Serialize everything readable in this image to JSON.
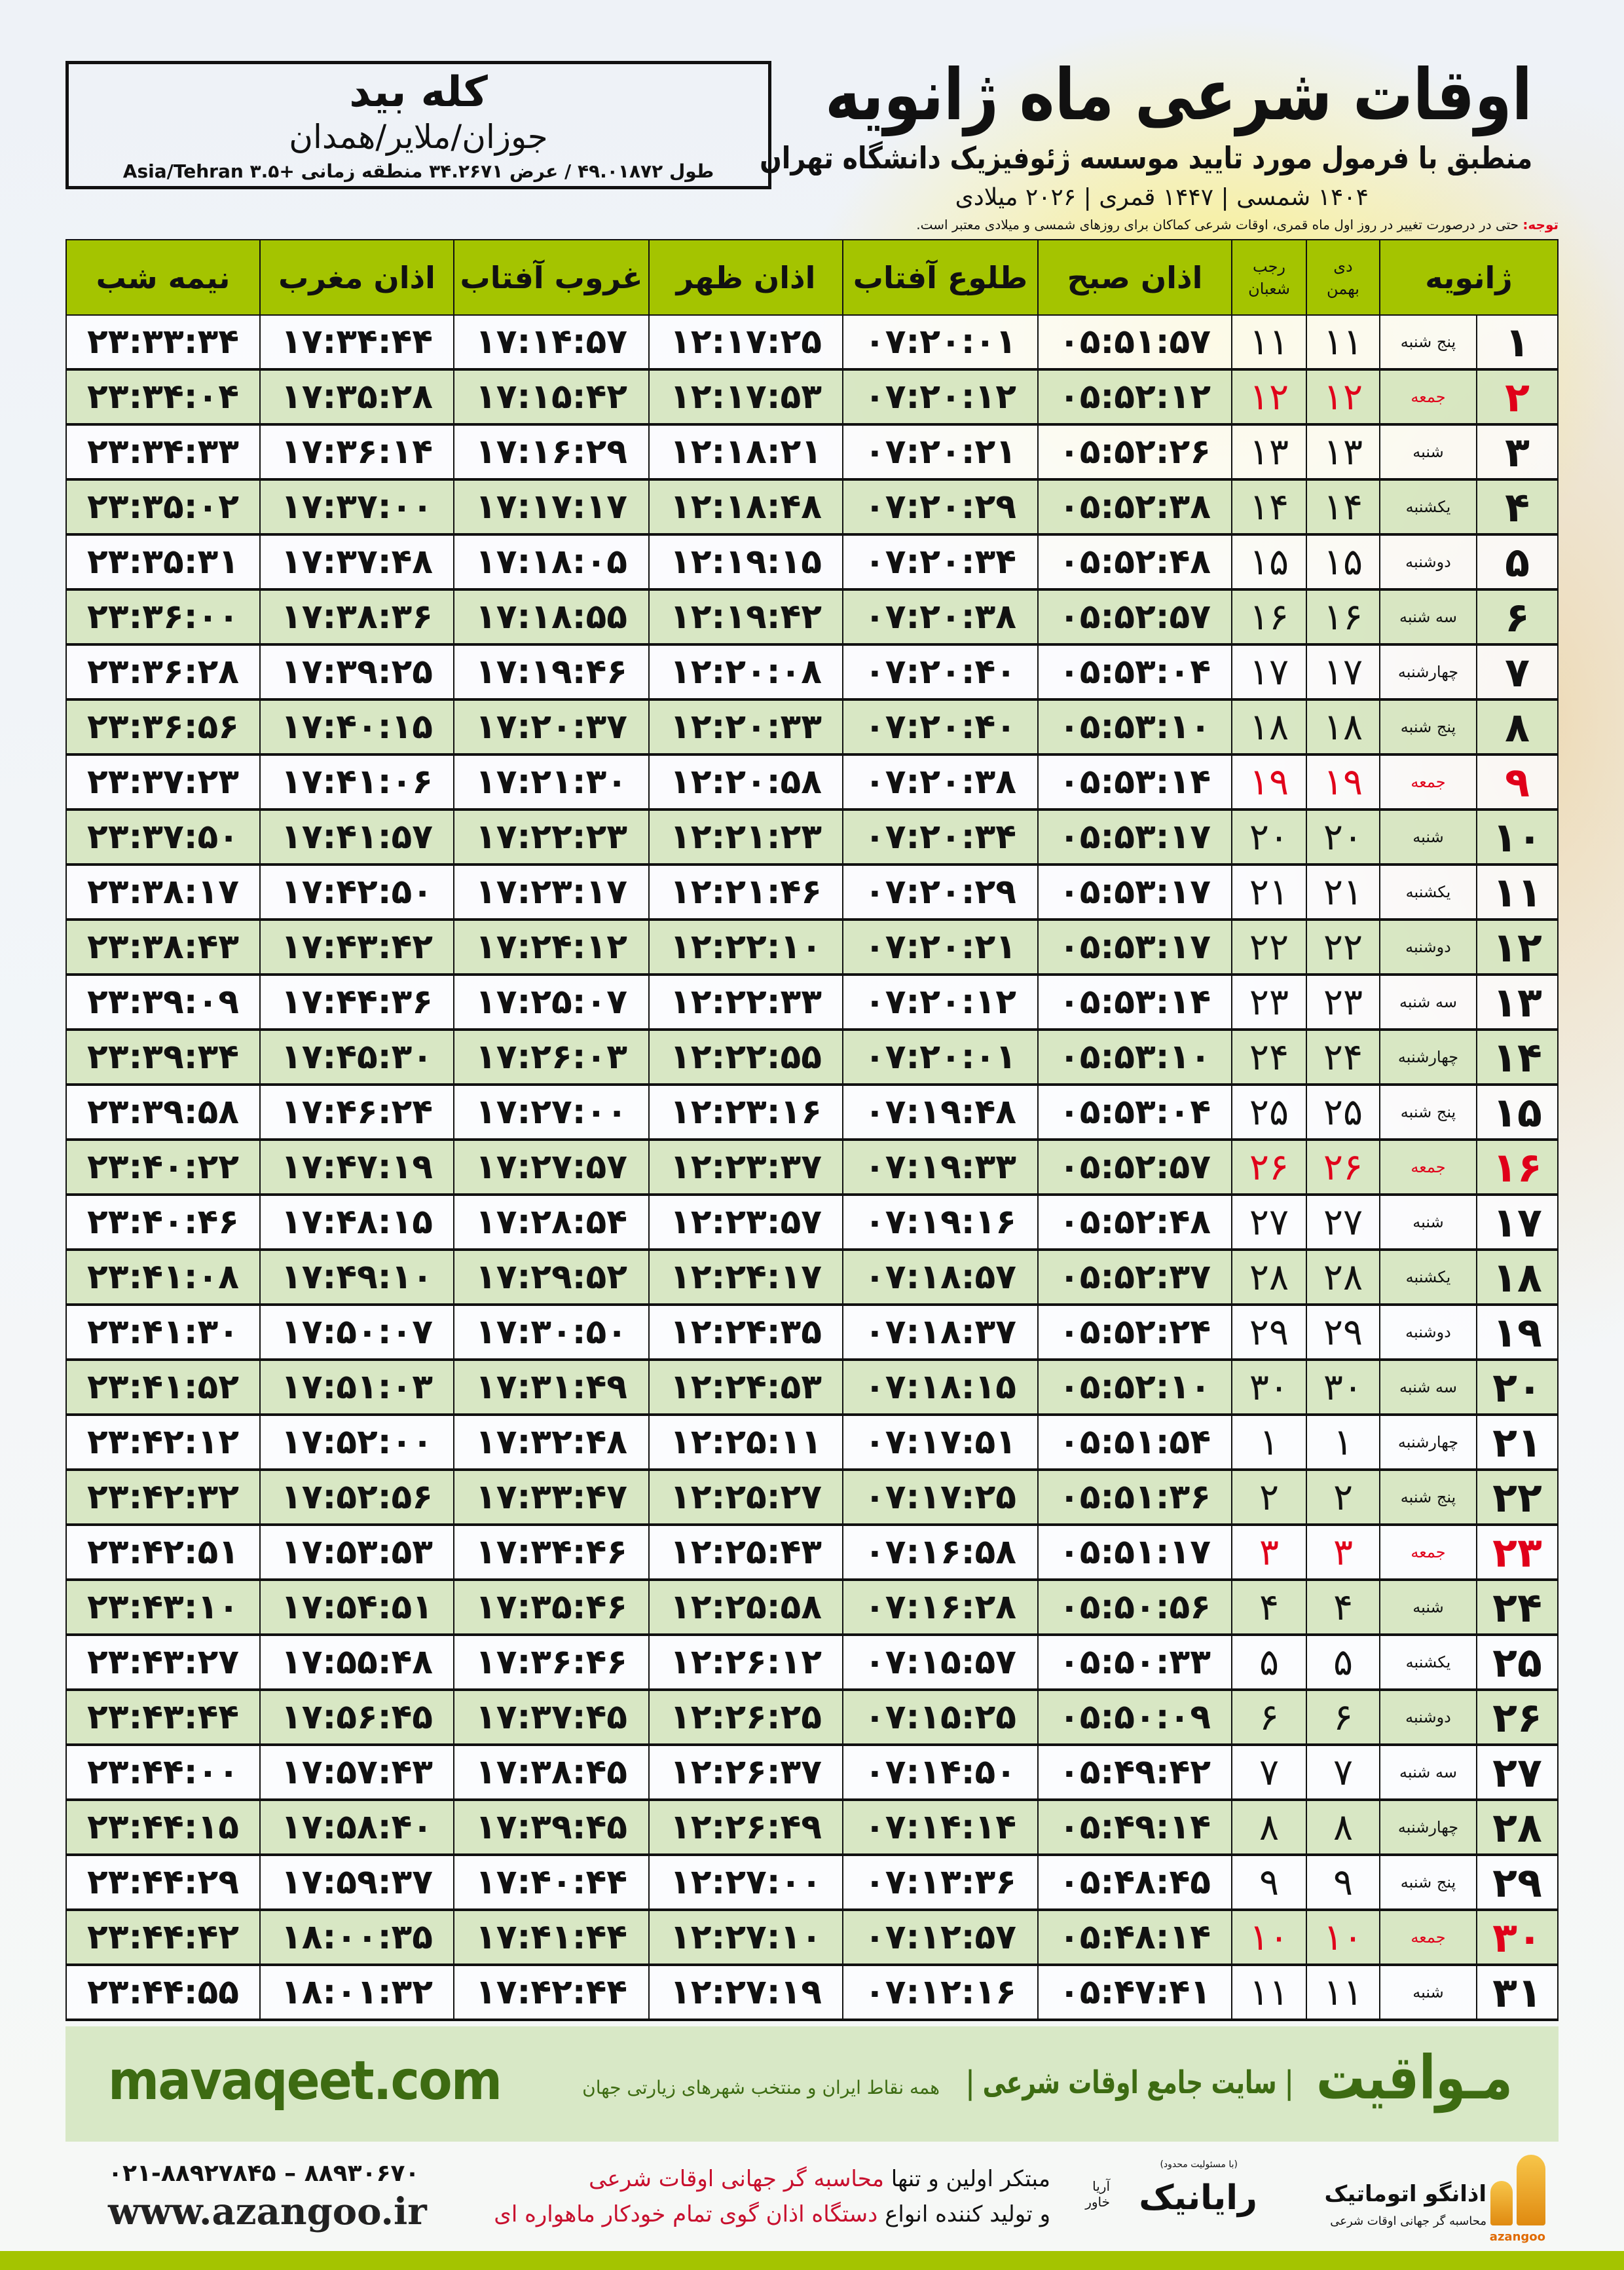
{
  "location": {
    "name": "کله بید",
    "region": "جوزان/ملایر/همدان",
    "coords": "طول ۴۹.۰۱۸۷۲ / عرض ۳۴.۲۶۷۱ منطقه زمانی +۳.۵ Asia/Tehran"
  },
  "header": {
    "title": "اوقات شرعی ماه ژانویه",
    "subtitle": "منطبق با فرمول مورد تایید موسسه ژئوفیزیک دانشگاه تهران",
    "dateline": "۱۴۰۴ شمسی | ۱۴۴۷ قمری | ۲۰۲۶ میلادی",
    "note_label": "توجه:",
    "note_text": " حتی در درصورت تغییر در روز اول ماه قمری، اوقات شرعی کماکان برای روزهای شمسی و میلادی معتبر است."
  },
  "colors": {
    "header_green": "#a4c400",
    "row_green": "#d6e6c2",
    "holiday_red": "#e0001a",
    "brand_green": "#3d6b12"
  },
  "table": {
    "columns": {
      "month": "ژانویه",
      "shamsi_top": "دی",
      "shamsi_bottom": "بهمن",
      "lunar_top": "رجب",
      "lunar_bottom": "شعبان",
      "fajr": "اذان صبح",
      "sunrise": "طلوع آفتاب",
      "dhuhr": "اذان ظهر",
      "sunset": "غروب آفتاب",
      "maghrib": "اذان مغرب",
      "midnight": "نیمه شب"
    },
    "rows": [
      {
        "day": "۱",
        "weekday": "پنج شنبه",
        "shamsi": "۱۱",
        "lunar": "۱۱",
        "fajr": "۰۵:۵۱:۵۷",
        "sunrise": "۰۷:۲۰:۰۱",
        "dhuhr": "۱۲:۱۷:۲۵",
        "sunset": "۱۷:۱۴:۵۷",
        "maghrib": "۱۷:۳۴:۴۴",
        "midnight": "۲۳:۳۳:۳۴",
        "holiday": false
      },
      {
        "day": "۲",
        "weekday": "جمعه",
        "shamsi": "۱۲",
        "lunar": "۱۲",
        "fajr": "۰۵:۵۲:۱۲",
        "sunrise": "۰۷:۲۰:۱۲",
        "dhuhr": "۱۲:۱۷:۵۳",
        "sunset": "۱۷:۱۵:۴۲",
        "maghrib": "۱۷:۳۵:۲۸",
        "midnight": "۲۳:۳۴:۰۴",
        "holiday": true
      },
      {
        "day": "۳",
        "weekday": "شنبه",
        "shamsi": "۱۳",
        "lunar": "۱۳",
        "fajr": "۰۵:۵۲:۲۶",
        "sunrise": "۰۷:۲۰:۲۱",
        "dhuhr": "۱۲:۱۸:۲۱",
        "sunset": "۱۷:۱۶:۲۹",
        "maghrib": "۱۷:۳۶:۱۴",
        "midnight": "۲۳:۳۴:۳۳",
        "holiday": false
      },
      {
        "day": "۴",
        "weekday": "یکشنبه",
        "shamsi": "۱۴",
        "lunar": "۱۴",
        "fajr": "۰۵:۵۲:۳۸",
        "sunrise": "۰۷:۲۰:۲۹",
        "dhuhr": "۱۲:۱۸:۴۸",
        "sunset": "۱۷:۱۷:۱۷",
        "maghrib": "۱۷:۳۷:۰۰",
        "midnight": "۲۳:۳۵:۰۲",
        "holiday": false
      },
      {
        "day": "۵",
        "weekday": "دوشنبه",
        "shamsi": "۱۵",
        "lunar": "۱۵",
        "fajr": "۰۵:۵۲:۴۸",
        "sunrise": "۰۷:۲۰:۳۴",
        "dhuhr": "۱۲:۱۹:۱۵",
        "sunset": "۱۷:۱۸:۰۵",
        "maghrib": "۱۷:۳۷:۴۸",
        "midnight": "۲۳:۳۵:۳۱",
        "holiday": false
      },
      {
        "day": "۶",
        "weekday": "سه شنبه",
        "shamsi": "۱۶",
        "lunar": "۱۶",
        "fajr": "۰۵:۵۲:۵۷",
        "sunrise": "۰۷:۲۰:۳۸",
        "dhuhr": "۱۲:۱۹:۴۲",
        "sunset": "۱۷:۱۸:۵۵",
        "maghrib": "۱۷:۳۸:۳۶",
        "midnight": "۲۳:۳۶:۰۰",
        "holiday": false
      },
      {
        "day": "۷",
        "weekday": "چهارشنبه",
        "shamsi": "۱۷",
        "lunar": "۱۷",
        "fajr": "۰۵:۵۳:۰۴",
        "sunrise": "۰۷:۲۰:۴۰",
        "dhuhr": "۱۲:۲۰:۰۸",
        "sunset": "۱۷:۱۹:۴۶",
        "maghrib": "۱۷:۳۹:۲۵",
        "midnight": "۲۳:۳۶:۲۸",
        "holiday": false
      },
      {
        "day": "۸",
        "weekday": "پنج شنبه",
        "shamsi": "۱۸",
        "lunar": "۱۸",
        "fajr": "۰۵:۵۳:۱۰",
        "sunrise": "۰۷:۲۰:۴۰",
        "dhuhr": "۱۲:۲۰:۳۳",
        "sunset": "۱۷:۲۰:۳۷",
        "maghrib": "۱۷:۴۰:۱۵",
        "midnight": "۲۳:۳۶:۵۶",
        "holiday": false
      },
      {
        "day": "۹",
        "weekday": "جمعه",
        "shamsi": "۱۹",
        "lunar": "۱۹",
        "fajr": "۰۵:۵۳:۱۴",
        "sunrise": "۰۷:۲۰:۳۸",
        "dhuhr": "۱۲:۲۰:۵۸",
        "sunset": "۱۷:۲۱:۳۰",
        "maghrib": "۱۷:۴۱:۰۶",
        "midnight": "۲۳:۳۷:۲۳",
        "holiday": true
      },
      {
        "day": "۱۰",
        "weekday": "شنبه",
        "shamsi": "۲۰",
        "lunar": "۲۰",
        "fajr": "۰۵:۵۳:۱۷",
        "sunrise": "۰۷:۲۰:۳۴",
        "dhuhr": "۱۲:۲۱:۲۳",
        "sunset": "۱۷:۲۲:۲۳",
        "maghrib": "۱۷:۴۱:۵۷",
        "midnight": "۲۳:۳۷:۵۰",
        "holiday": false
      },
      {
        "day": "۱۱",
        "weekday": "یکشنبه",
        "shamsi": "۲۱",
        "lunar": "۲۱",
        "fajr": "۰۵:۵۳:۱۷",
        "sunrise": "۰۷:۲۰:۲۹",
        "dhuhr": "۱۲:۲۱:۴۶",
        "sunset": "۱۷:۲۳:۱۷",
        "maghrib": "۱۷:۴۲:۵۰",
        "midnight": "۲۳:۳۸:۱۷",
        "holiday": false
      },
      {
        "day": "۱۲",
        "weekday": "دوشنبه",
        "shamsi": "۲۲",
        "lunar": "۲۲",
        "fajr": "۰۵:۵۳:۱۷",
        "sunrise": "۰۷:۲۰:۲۱",
        "dhuhr": "۱۲:۲۲:۱۰",
        "sunset": "۱۷:۲۴:۱۲",
        "maghrib": "۱۷:۴۳:۴۲",
        "midnight": "۲۳:۳۸:۴۳",
        "holiday": false
      },
      {
        "day": "۱۳",
        "weekday": "سه شنبه",
        "shamsi": "۲۳",
        "lunar": "۲۳",
        "fajr": "۰۵:۵۳:۱۴",
        "sunrise": "۰۷:۲۰:۱۲",
        "dhuhr": "۱۲:۲۲:۳۳",
        "sunset": "۱۷:۲۵:۰۷",
        "maghrib": "۱۷:۴۴:۳۶",
        "midnight": "۲۳:۳۹:۰۹",
        "holiday": false
      },
      {
        "day": "۱۴",
        "weekday": "چهارشنبه",
        "shamsi": "۲۴",
        "lunar": "۲۴",
        "fajr": "۰۵:۵۳:۱۰",
        "sunrise": "۰۷:۲۰:۰۱",
        "dhuhr": "۱۲:۲۲:۵۵",
        "sunset": "۱۷:۲۶:۰۳",
        "maghrib": "۱۷:۴۵:۳۰",
        "midnight": "۲۳:۳۹:۳۴",
        "holiday": false
      },
      {
        "day": "۱۵",
        "weekday": "پنج شنبه",
        "shamsi": "۲۵",
        "lunar": "۲۵",
        "fajr": "۰۵:۵۳:۰۴",
        "sunrise": "۰۷:۱۹:۴۸",
        "dhuhr": "۱۲:۲۳:۱۶",
        "sunset": "۱۷:۲۷:۰۰",
        "maghrib": "۱۷:۴۶:۲۴",
        "midnight": "۲۳:۳۹:۵۸",
        "holiday": false
      },
      {
        "day": "۱۶",
        "weekday": "جمعه",
        "shamsi": "۲۶",
        "lunar": "۲۶",
        "fajr": "۰۵:۵۲:۵۷",
        "sunrise": "۰۷:۱۹:۳۳",
        "dhuhr": "۱۲:۲۳:۳۷",
        "sunset": "۱۷:۲۷:۵۷",
        "maghrib": "۱۷:۴۷:۱۹",
        "midnight": "۲۳:۴۰:۲۲",
        "holiday": true
      },
      {
        "day": "۱۷",
        "weekday": "شنبه",
        "shamsi": "۲۷",
        "lunar": "۲۷",
        "fajr": "۰۵:۵۲:۴۸",
        "sunrise": "۰۷:۱۹:۱۶",
        "dhuhr": "۱۲:۲۳:۵۷",
        "sunset": "۱۷:۲۸:۵۴",
        "maghrib": "۱۷:۴۸:۱۵",
        "midnight": "۲۳:۴۰:۴۶",
        "holiday": false
      },
      {
        "day": "۱۸",
        "weekday": "یکشنبه",
        "shamsi": "۲۸",
        "lunar": "۲۸",
        "fajr": "۰۵:۵۲:۳۷",
        "sunrise": "۰۷:۱۸:۵۷",
        "dhuhr": "۱۲:۲۴:۱۷",
        "sunset": "۱۷:۲۹:۵۲",
        "maghrib": "۱۷:۴۹:۱۰",
        "midnight": "۲۳:۴۱:۰۸",
        "holiday": false
      },
      {
        "day": "۱۹",
        "weekday": "دوشنبه",
        "shamsi": "۲۹",
        "lunar": "۲۹",
        "fajr": "۰۵:۵۲:۲۴",
        "sunrise": "۰۷:۱۸:۳۷",
        "dhuhr": "۱۲:۲۴:۳۵",
        "sunset": "۱۷:۳۰:۵۰",
        "maghrib": "۱۷:۵۰:۰۷",
        "midnight": "۲۳:۴۱:۳۰",
        "holiday": false
      },
      {
        "day": "۲۰",
        "weekday": "سه شنبه",
        "shamsi": "۳۰",
        "lunar": "۳۰",
        "fajr": "۰۵:۵۲:۱۰",
        "sunrise": "۰۷:۱۸:۱۵",
        "dhuhr": "۱۲:۲۴:۵۳",
        "sunset": "۱۷:۳۱:۴۹",
        "maghrib": "۱۷:۵۱:۰۳",
        "midnight": "۲۳:۴۱:۵۲",
        "holiday": false
      },
      {
        "day": "۲۱",
        "weekday": "چهارشنبه",
        "shamsi": "۱",
        "lunar": "۱",
        "fajr": "۰۵:۵۱:۵۴",
        "sunrise": "۰۷:۱۷:۵۱",
        "dhuhr": "۱۲:۲۵:۱۱",
        "sunset": "۱۷:۳۲:۴۸",
        "maghrib": "۱۷:۵۲:۰۰",
        "midnight": "۲۳:۴۲:۱۲",
        "holiday": false
      },
      {
        "day": "۲۲",
        "weekday": "پنج شنبه",
        "shamsi": "۲",
        "lunar": "۲",
        "fajr": "۰۵:۵۱:۳۶",
        "sunrise": "۰۷:۱۷:۲۵",
        "dhuhr": "۱۲:۲۵:۲۷",
        "sunset": "۱۷:۳۳:۴۷",
        "maghrib": "۱۷:۵۲:۵۶",
        "midnight": "۲۳:۴۲:۳۲",
        "holiday": false
      },
      {
        "day": "۲۳",
        "weekday": "جمعه",
        "shamsi": "۳",
        "lunar": "۳",
        "fajr": "۰۵:۵۱:۱۷",
        "sunrise": "۰۷:۱۶:۵۸",
        "dhuhr": "۱۲:۲۵:۴۳",
        "sunset": "۱۷:۳۴:۴۶",
        "maghrib": "۱۷:۵۳:۵۳",
        "midnight": "۲۳:۴۲:۵۱",
        "holiday": true
      },
      {
        "day": "۲۴",
        "weekday": "شنبه",
        "shamsi": "۴",
        "lunar": "۴",
        "fajr": "۰۵:۵۰:۵۶",
        "sunrise": "۰۷:۱۶:۲۸",
        "dhuhr": "۱۲:۲۵:۵۸",
        "sunset": "۱۷:۳۵:۴۶",
        "maghrib": "۱۷:۵۴:۵۱",
        "midnight": "۲۳:۴۳:۱۰",
        "holiday": false
      },
      {
        "day": "۲۵",
        "weekday": "یکشنبه",
        "shamsi": "۵",
        "lunar": "۵",
        "fajr": "۰۵:۵۰:۳۳",
        "sunrise": "۰۷:۱۵:۵۷",
        "dhuhr": "۱۲:۲۶:۱۲",
        "sunset": "۱۷:۳۶:۴۶",
        "maghrib": "۱۷:۵۵:۴۸",
        "midnight": "۲۳:۴۳:۲۷",
        "holiday": false
      },
      {
        "day": "۲۶",
        "weekday": "دوشنبه",
        "shamsi": "۶",
        "lunar": "۶",
        "fajr": "۰۵:۵۰:۰۹",
        "sunrise": "۰۷:۱۵:۲۵",
        "dhuhr": "۱۲:۲۶:۲۵",
        "sunset": "۱۷:۳۷:۴۵",
        "maghrib": "۱۷:۵۶:۴۵",
        "midnight": "۲۳:۴۳:۴۴",
        "holiday": false
      },
      {
        "day": "۲۷",
        "weekday": "سه شنبه",
        "shamsi": "۷",
        "lunar": "۷",
        "fajr": "۰۵:۴۹:۴۲",
        "sunrise": "۰۷:۱۴:۵۰",
        "dhuhr": "۱۲:۲۶:۳۷",
        "sunset": "۱۷:۳۸:۴۵",
        "maghrib": "۱۷:۵۷:۴۳",
        "midnight": "۲۳:۴۴:۰۰",
        "holiday": false
      },
      {
        "day": "۲۸",
        "weekday": "چهارشنبه",
        "shamsi": "۸",
        "lunar": "۸",
        "fajr": "۰۵:۴۹:۱۴",
        "sunrise": "۰۷:۱۴:۱۴",
        "dhuhr": "۱۲:۲۶:۴۹",
        "sunset": "۱۷:۳۹:۴۵",
        "maghrib": "۱۷:۵۸:۴۰",
        "midnight": "۲۳:۴۴:۱۵",
        "holiday": false
      },
      {
        "day": "۲۹",
        "weekday": "پنج شنبه",
        "shamsi": "۹",
        "lunar": "۹",
        "fajr": "۰۵:۴۸:۴۵",
        "sunrise": "۰۷:۱۳:۳۶",
        "dhuhr": "۱۲:۲۷:۰۰",
        "sunset": "۱۷:۴۰:۴۴",
        "maghrib": "۱۷:۵۹:۳۷",
        "midnight": "۲۳:۴۴:۲۹",
        "holiday": false
      },
      {
        "day": "۳۰",
        "weekday": "جمعه",
        "shamsi": "۱۰",
        "lunar": "۱۰",
        "fajr": "۰۵:۴۸:۱۴",
        "sunrise": "۰۷:۱۲:۵۷",
        "dhuhr": "۱۲:۲۷:۱۰",
        "sunset": "۱۷:۴۱:۴۴",
        "maghrib": "۱۸:۰۰:۳۵",
        "midnight": "۲۳:۴۴:۴۲",
        "holiday": true
      },
      {
        "day": "۳۱",
        "weekday": "شنبه",
        "shamsi": "۱۱",
        "lunar": "۱۱",
        "fajr": "۰۵:۴۷:۴۱",
        "sunrise": "۰۷:۱۲:۱۶",
        "dhuhr": "۱۲:۲۷:۱۹",
        "sunset": "۱۷:۴۲:۴۴",
        "maghrib": "۱۸:۰۱:۳۲",
        "midnight": "۲۳:۴۴:۵۵",
        "holiday": false
      }
    ]
  },
  "footer": {
    "mavaqeet_logo": "مـواقیت",
    "mavaqeet_slogan": "| سایت جامع اوقات شرعی |",
    "mavaqeet_sub": "همه نقاط ایران و منتخب شهرهای زیارتی جهان",
    "mavaqeet_url": "mavaqeet.com",
    "azangoo_brand": "اذانگو اتوماتیک",
    "azangoo_tag": "محاسبه گر جهانی اوقات شرعی",
    "azangoo_en": "azangoo",
    "rayanik_llc": "(با مسئولیت محدود)",
    "rayanik_name": "رایانیک",
    "rayanik_sub": "آریا خاور",
    "promo_line1_a": "مبتکر اولین و تنها ",
    "promo_line1_b": "محاسبه گر جهانی اوقات شرعی",
    "promo_line2_a": "و تولید کننده انواع ",
    "promo_line2_b": "دستگاه اذان گوی تمام خودکار ماهواره ای",
    "phone": "۰۲۱-۸۸۹۲۷۸۴۵ – ۸۸۹۳۰۶۷۰",
    "website": "www.azangoo.ir"
  }
}
